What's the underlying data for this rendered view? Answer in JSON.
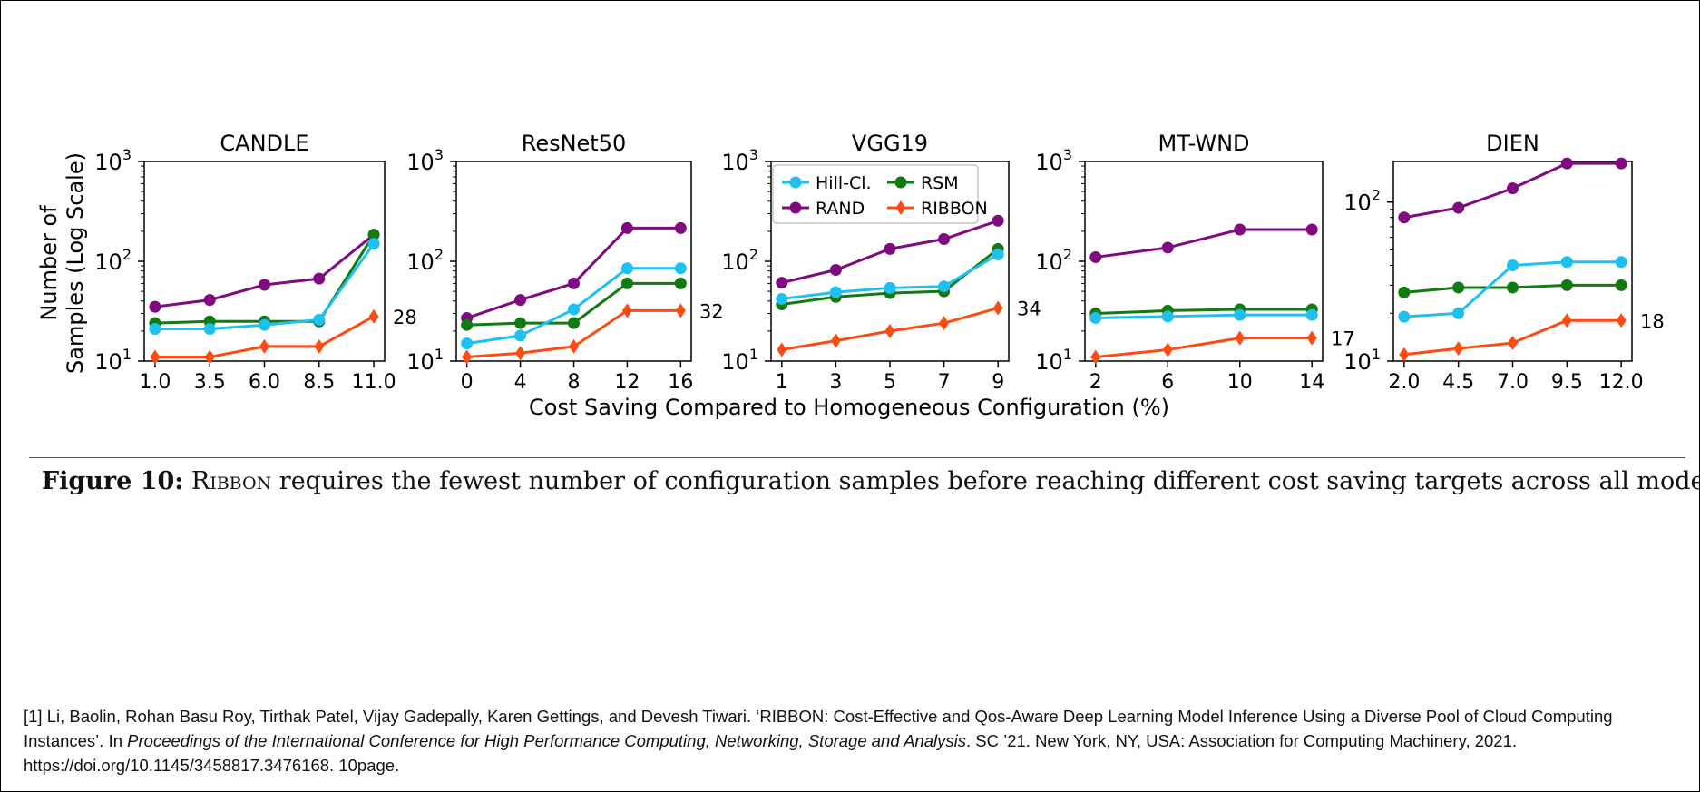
{
  "figure": {
    "ylabel_line1": "Number of",
    "ylabel_line2": "Samples (Log Scale)",
    "xlabel": "Cost Saving Compared to Homogeneous Configuration (%)"
  },
  "legend": {
    "entries": [
      {
        "name": "Hill-Cl.",
        "color": "#1ec0f0",
        "marker": "circle"
      },
      {
        "name": "RSM",
        "color": "#117a11",
        "marker": "circle"
      },
      {
        "name": "RAND",
        "color": "#800a80",
        "marker": "circle"
      },
      {
        "name": "RIBBON",
        "color": "#ff4b12",
        "marker": "diamond"
      }
    ],
    "location": "upper-left of VGG19 panel"
  },
  "chart_data": [
    {
      "type": "line",
      "title": "CANDLE",
      "yscale": "log",
      "ylim": [
        10,
        1000
      ],
      "yticks": [
        "10^1",
        "10^2",
        "10^3"
      ],
      "x": [
        1.0,
        3.5,
        6.0,
        8.5,
        11.0
      ],
      "xtick_labels": [
        "1.0",
        "3.5",
        "6.0",
        "8.5",
        "11.0"
      ],
      "series": [
        {
          "name": "RAND",
          "values": [
            35,
            41,
            58,
            67,
            185
          ]
        },
        {
          "name": "RSM",
          "values": [
            24,
            25,
            25,
            25,
            185
          ]
        },
        {
          "name": "Hill-Cl.",
          "values": [
            21,
            21,
            23,
            26,
            150
          ]
        },
        {
          "name": "RIBBON",
          "values": [
            11,
            11,
            14,
            14,
            28
          ]
        }
      ],
      "end_label": "28"
    },
    {
      "type": "line",
      "title": "ResNet50",
      "yscale": "log",
      "ylim": [
        10,
        1000
      ],
      "yticks": [
        "10^1",
        "10^2",
        "10^3"
      ],
      "x": [
        0,
        4,
        8,
        12,
        16
      ],
      "xtick_labels": [
        "0",
        "4",
        "8",
        "12",
        "16"
      ],
      "series": [
        {
          "name": "RAND",
          "values": [
            27,
            41,
            60,
            215,
            215
          ]
        },
        {
          "name": "RSM",
          "values": [
            23,
            24,
            24,
            60,
            60
          ]
        },
        {
          "name": "Hill-Cl.",
          "values": [
            15,
            18,
            33,
            85,
            85
          ]
        },
        {
          "name": "RIBBON",
          "values": [
            11,
            12,
            14,
            32,
            32
          ]
        }
      ],
      "end_label": "32"
    },
    {
      "type": "line",
      "title": "VGG19",
      "yscale": "log",
      "ylim": [
        10,
        1000
      ],
      "yticks": [
        "10^1",
        "10^2",
        "10^3"
      ],
      "x": [
        1,
        3,
        5,
        7,
        9
      ],
      "xtick_labels": [
        "1",
        "3",
        "5",
        "7",
        "9"
      ],
      "series": [
        {
          "name": "RAND",
          "values": [
            61,
            82,
            133,
            167,
            255
          ]
        },
        {
          "name": "RSM",
          "values": [
            37,
            44,
            48,
            50,
            133
          ]
        },
        {
          "name": "Hill-Cl.",
          "values": [
            42,
            49,
            54,
            56,
            117
          ]
        },
        {
          "name": "RIBBON",
          "values": [
            13,
            16,
            20,
            24,
            34
          ]
        }
      ],
      "end_label": "34"
    },
    {
      "type": "line",
      "title": "MT-WND",
      "yscale": "log",
      "ylim": [
        10,
        1000
      ],
      "yticks": [
        "10^1",
        "10^2",
        "10^3"
      ],
      "x": [
        2,
        6,
        10,
        14
      ],
      "xtick_labels": [
        "2",
        "6",
        "10",
        "14"
      ],
      "series": [
        {
          "name": "RAND",
          "values": [
            110,
            137,
            208,
            208
          ]
        },
        {
          "name": "RSM",
          "values": [
            30,
            32,
            33,
            33
          ]
        },
        {
          "name": "Hill-Cl.",
          "values": [
            27,
            28,
            29,
            29
          ]
        },
        {
          "name": "RIBBON",
          "values": [
            11,
            13,
            17,
            17
          ]
        }
      ],
      "end_label": "17"
    },
    {
      "type": "line",
      "title": "DIEN",
      "yscale": "log",
      "ylim": [
        10,
        180
      ],
      "yticks": [
        "10^1",
        "10^2"
      ],
      "x": [
        2.0,
        4.5,
        7.0,
        9.5,
        12.0
      ],
      "xtick_labels": [
        "2.0",
        "4.5",
        "7.0",
        "9.5",
        "12.0"
      ],
      "series": [
        {
          "name": "RAND",
          "values": [
            80,
            92,
            122,
            175,
            175
          ]
        },
        {
          "name": "RSM",
          "values": [
            27,
            29,
            29,
            30,
            30
          ]
        },
        {
          "name": "Hill-Cl.",
          "values": [
            19,
            20,
            40,
            42,
            42
          ]
        },
        {
          "name": "RIBBON",
          "values": [
            11,
            12,
            13,
            18,
            18
          ]
        }
      ],
      "end_label": "18"
    }
  ],
  "caption": {
    "label": "Figure 10:",
    "name": "Ribbon",
    "text": " requires the fewest number of configuration samples before reaching different cost saving targets across all models."
  },
  "reference": {
    "part1": "[1] Li, Baolin, Rohan Basu Roy, Tirthak Patel, Vijay Gadepally, Karen Gettings, and Devesh Tiwari. ‘RIBBON: Cost-Effective and Qos-Aware Deep Learning Model Inference Using a Diverse Pool of Cloud Computing Instances’. In ",
    "venue": "Proceedings of the International Conference for High Performance Computing, Networking, Storage and Analysis",
    "part2": ". SC ’21. New York, NY, USA: Association for Computing Machinery, 2021. https://doi.org/10.1145/3458817.3476168. 10page."
  }
}
